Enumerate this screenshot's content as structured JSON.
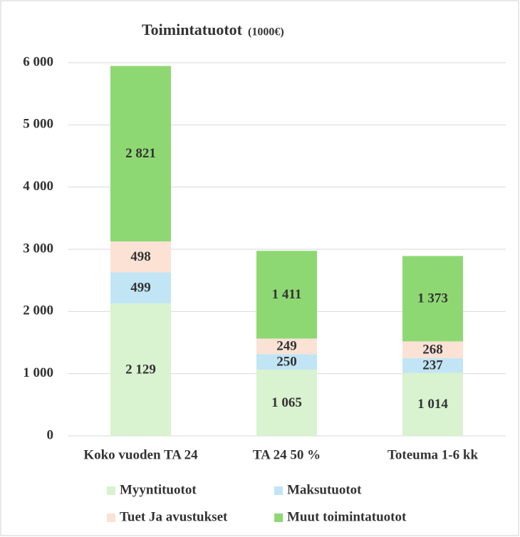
{
  "chart_data": {
    "type": "stacked_bar",
    "title": "Toimintatuotot",
    "subtitle": "(1000€)",
    "categories": [
      "Koko vuoden TA 24",
      "TA 24 50 %",
      "Toteuma 1-6 kk"
    ],
    "series": [
      {
        "name": "Myyntituotot",
        "color": "#d9f2d0",
        "values": [
          2129,
          1065,
          1014
        ],
        "value_labels": [
          "2 129",
          "1 065",
          "1 014"
        ]
      },
      {
        "name": "Maksutuotot",
        "color": "#c1e5f5",
        "values": [
          499,
          250,
          237
        ],
        "value_labels": [
          "499",
          "250",
          "237"
        ]
      },
      {
        "name": "Tuet Ja avustukset",
        "color": "#fbe2d5",
        "values": [
          498,
          249,
          268
        ],
        "value_labels": [
          "498",
          "249",
          "268"
        ]
      },
      {
        "name": "Muut toimintatuotot",
        "color": "#8ed873",
        "values": [
          2821,
          1411,
          1373
        ],
        "value_labels": [
          "2 821",
          "1 411",
          "1 373"
        ]
      }
    ],
    "ylim": [
      0,
      6000
    ],
    "yticks": [
      0,
      {
        "value": 1000,
        "label": "1 000"
      },
      {
        "value": 2000,
        "label": "2 000"
      },
      {
        "value": 3000,
        "label": "3 000"
      },
      {
        "value": 4000,
        "label": "4 000"
      },
      {
        "value": 5000,
        "label": "5 000"
      },
      {
        "value": 6000,
        "label": "6 000"
      }
    ],
    "grid": true,
    "legend": "bottom"
  }
}
